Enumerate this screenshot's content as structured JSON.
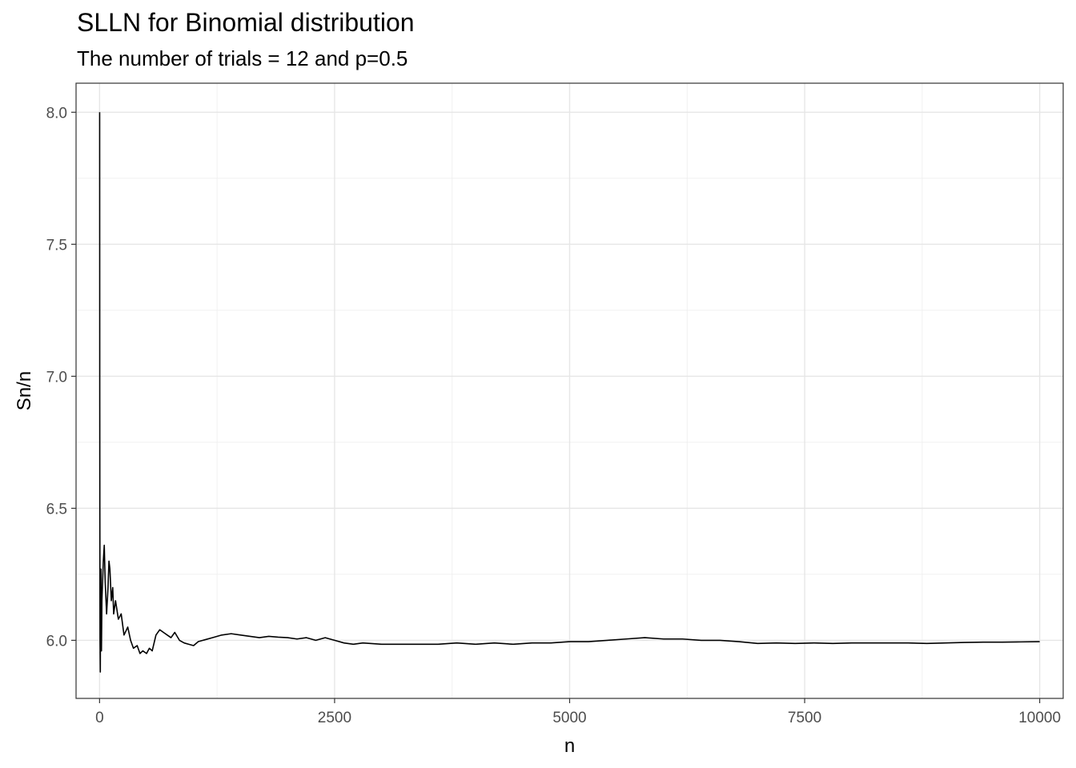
{
  "chart_data": {
    "type": "line",
    "title": "SLLN for Binomial distribution",
    "subtitle": "The number of trials = 12 and p=0.5",
    "xlabel": "n",
    "ylabel": "Sn/n",
    "xlim": [
      -250,
      10250
    ],
    "ylim": [
      5.78,
      8.11
    ],
    "xticks": [
      0,
      2500,
      5000,
      7500,
      10000
    ],
    "xtick_labels": [
      "0",
      "2500",
      "5000",
      "7500",
      "10000"
    ],
    "yticks": [
      6.0,
      6.5,
      7.0,
      7.5,
      8.0
    ],
    "ytick_labels": [
      "6.0",
      "6.5",
      "7.0",
      "7.5",
      "8.0"
    ],
    "grid": true,
    "series": [
      {
        "color": "#000000",
        "x": [
          1,
          2,
          3,
          5,
          8,
          10,
          15,
          20,
          25,
          30,
          40,
          50,
          60,
          75,
          90,
          100,
          110,
          125,
          140,
          150,
          170,
          200,
          230,
          260,
          300,
          330,
          360,
          400,
          430,
          460,
          500,
          530,
          560,
          600,
          640,
          680,
          720,
          760,
          800,
          850,
          900,
          950,
          1000,
          1050,
          1100,
          1200,
          1300,
          1400,
          1500,
          1600,
          1700,
          1800,
          1900,
          2000,
          2100,
          2200,
          2300,
          2400,
          2500,
          2600,
          2700,
          2800,
          3000,
          3200,
          3400,
          3600,
          3800,
          4000,
          4200,
          4400,
          4600,
          4800,
          5000,
          5200,
          5400,
          5600,
          5800,
          6000,
          6200,
          6400,
          6600,
          6800,
          7000,
          7200,
          7400,
          7600,
          7800,
          8000,
          8200,
          8400,
          8600,
          8800,
          9000,
          9200,
          9400,
          9600,
          9800,
          10000
        ],
        "y": [
          8.0,
          7.0,
          6.5,
          6.0,
          5.88,
          6.1,
          6.27,
          5.96,
          6.15,
          6.2,
          6.3,
          6.36,
          6.22,
          6.1,
          6.2,
          6.3,
          6.27,
          6.15,
          6.2,
          6.1,
          6.15,
          6.08,
          6.1,
          6.02,
          6.05,
          6.0,
          5.97,
          5.98,
          5.95,
          5.96,
          5.95,
          5.97,
          5.96,
          6.02,
          6.04,
          6.03,
          6.02,
          6.01,
          6.03,
          6.0,
          5.99,
          5.985,
          5.98,
          5.995,
          6.0,
          6.01,
          6.02,
          6.025,
          6.02,
          6.015,
          6.01,
          6.015,
          6.012,
          6.01,
          6.005,
          6.01,
          6.0,
          6.01,
          6.0,
          5.99,
          5.985,
          5.99,
          5.985,
          5.985,
          5.985,
          5.985,
          5.99,
          5.985,
          5.99,
          5.985,
          5.99,
          5.99,
          5.995,
          5.995,
          6.0,
          6.005,
          6.01,
          6.005,
          6.005,
          6.0,
          6.0,
          5.995,
          5.988,
          5.99,
          5.988,
          5.99,
          5.988,
          5.99,
          5.99,
          5.99,
          5.99,
          5.988,
          5.99,
          5.992,
          5.993,
          5.993,
          5.994,
          5.995
        ]
      }
    ]
  }
}
